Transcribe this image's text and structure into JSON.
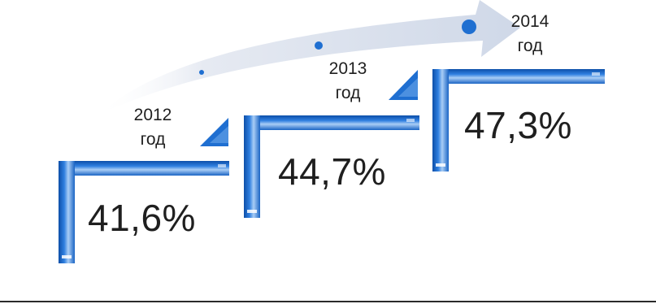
{
  "steps": [
    {
      "year": "2012",
      "unit": "год",
      "percent": "41,6%"
    },
    {
      "year": "2013",
      "unit": "год",
      "percent": "44,7%"
    },
    {
      "year": "2014",
      "unit": "год",
      "percent": "47,3%"
    }
  ],
  "colors": {
    "bracket_blue": "#1f6fd1",
    "bracket_light": "#9cc4f2",
    "arrow_fill": "#dde3ef",
    "dot_blue": "#1f6fd1",
    "text": "#1f1f1f"
  }
}
